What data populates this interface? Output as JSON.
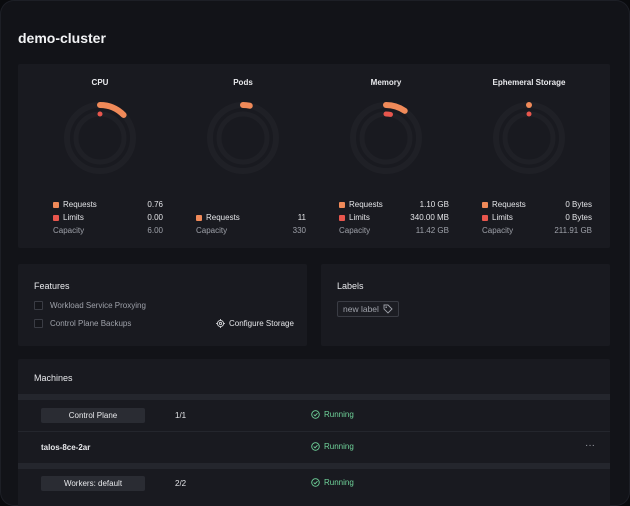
{
  "cluster": {
    "name": "demo-cluster"
  },
  "gauges": [
    {
      "title": "CPU",
      "requests_label": "Requests",
      "requests": "0.76",
      "limits_label": "Limits",
      "limits": "0.00",
      "capacity_label": "Capacity",
      "capacity": "6.00",
      "requests_fraction": 0.127,
      "limits_fraction": 0.0
    },
    {
      "title": "Pods",
      "requests_label": "Requests",
      "requests": "11",
      "capacity_label": "Capacity",
      "capacity": "330",
      "requests_fraction": 0.033
    },
    {
      "title": "Memory",
      "requests_label": "Requests",
      "requests": "1.10 GB",
      "limits_label": "Limits",
      "limits": "340.00 MB",
      "capacity_label": "Capacity",
      "capacity": "11.42 GB",
      "requests_fraction": 0.096,
      "limits_fraction": 0.03
    },
    {
      "title": "Ephemeral Storage",
      "requests_label": "Requests",
      "requests": "0 Bytes",
      "limits_label": "Limits",
      "limits": "0 Bytes",
      "capacity_label": "Capacity",
      "capacity": "211.91 GB",
      "requests_fraction": 0.0,
      "limits_fraction": 0.0
    }
  ],
  "colors": {
    "requests": "#f08a59",
    "limits": "#e8564d",
    "track": "#1f2026",
    "running": "#6fd39a"
  },
  "features": {
    "title": "Features",
    "items": [
      {
        "label": "Workload Service Proxying",
        "checked": false
      },
      {
        "label": "Control Plane Backups",
        "checked": false
      }
    ],
    "configure_storage": "Configure Storage",
    "configure_icon": "gear-icon"
  },
  "labels": {
    "title": "Labels",
    "new_label": "new label",
    "icon": "tag-icon"
  },
  "machines": {
    "title": "Machines",
    "groups": [
      {
        "name": "Control Plane",
        "count": "1/1",
        "status": "Running"
      },
      {
        "name": "Workers: default",
        "count": "2/2",
        "status": "Running"
      }
    ],
    "nodes": [
      {
        "name": "talos-8ce-2ar",
        "status": "Running",
        "menu": "···"
      }
    ]
  }
}
